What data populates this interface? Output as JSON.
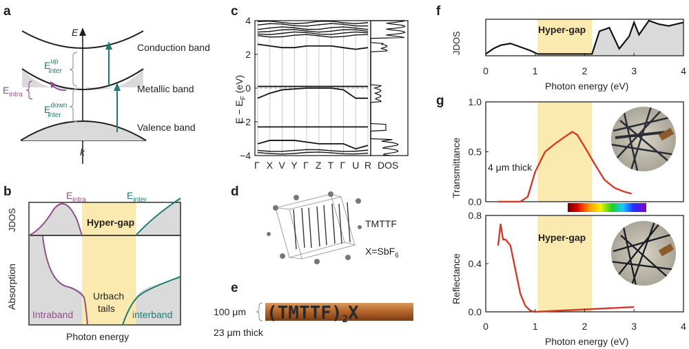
{
  "colors": {
    "purple": "#8e4e87",
    "teal": "#1f7a72",
    "red": "#d23a2a",
    "hypergap_fill": "#fbeab0",
    "grey_fill": "#dadada"
  },
  "panel_a": {
    "label": "a",
    "axis_e": "E",
    "axis_k": "k",
    "conduction": "Conduction band",
    "metallic": "Metallic band",
    "valence": "Valence band",
    "e_intra": {
      "base": "E",
      "sub": "intra"
    },
    "e_inter_up": {
      "base": "E",
      "sup": "up",
      "sub": "inter"
    },
    "e_inter_down": {
      "base": "E",
      "sup": "down",
      "sub": "inter"
    }
  },
  "panel_b": {
    "label": "b",
    "jdos": "JDOS",
    "absorption": "Absorption",
    "hypergap": "Hyper-gap",
    "e_intra": {
      "base": "E",
      "sub": "intra"
    },
    "e_inter": {
      "base": "E",
      "sub": "inter"
    },
    "intraband": "Intraband",
    "urbach_line1": "Urbach",
    "urbach_line2": "tails",
    "interband": "interband",
    "xlabel": "Photon energy"
  },
  "panel_c": {
    "label": "c",
    "ylabel": {
      "main": "E − E",
      "sub": "F",
      "unit": " (eV)"
    },
    "yticks": [
      "4",
      "2",
      "0",
      "−2",
      "−4"
    ],
    "kpoints": [
      "Γ",
      "X",
      "V",
      "Y",
      "Γ",
      "Z",
      "T",
      "Γ",
      "U",
      "R"
    ],
    "dos_label": "DOS",
    "ylim": [
      -4,
      4
    ]
  },
  "panel_d": {
    "label": "d",
    "molecule": "TMTTF",
    "anion": {
      "base": "X=SbF",
      "sub": "6"
    }
  },
  "panel_e": {
    "label": "e",
    "width_label": "100 μm",
    "crystal_text": "(TMTTF)",
    "crystal_sub": "2",
    "crystal_x": "X",
    "thickness": "23 μm thick"
  },
  "panel_f": {
    "label": "f",
    "ylabel": "JDOS",
    "hypergap": "Hyper-gap",
    "xlabel": "Photon energy (eV)",
    "xticks": [
      "0",
      "1",
      "2",
      "3",
      "4"
    ]
  },
  "panel_g": {
    "label": "g",
    "top_ylabel": "Transmittance",
    "top_yticks": [
      "1.0",
      "0.5",
      "0.0"
    ],
    "thickness": "4 μm thick",
    "bottom_ylabel": "Reflectance",
    "bottom_yticks": [
      "0.8",
      "0.4",
      "0.0"
    ],
    "hypergap": "Hyper-gap",
    "xlabel": "Photon energy (eV)",
    "xticks": [
      "0",
      "1",
      "2",
      "3",
      "4"
    ]
  },
  "chart_data": [
    {
      "type": "line",
      "panel": "c",
      "ylabel": "E − EF (eV)",
      "ylim": [
        -4,
        4
      ],
      "categories": [
        "Γ",
        "X",
        "V",
        "Y",
        "Γ",
        "Z",
        "T",
        "Γ",
        "U",
        "R"
      ],
      "series": [
        {
          "values": [
            0.1,
            0.1,
            0.1,
            0.1,
            0.1,
            0.1,
            0.1,
            0.1,
            0.1,
            0.1
          ]
        },
        {
          "values": [
            -0.6,
            -0.3,
            -0.1,
            -0.05,
            0.0,
            0.0,
            0.0,
            -0.1,
            -0.6,
            -0.6
          ]
        },
        {
          "values": [
            2.6,
            2.5,
            2.4,
            2.4,
            2.5,
            2.5,
            2.5,
            2.4,
            2.3,
            2.4
          ]
        },
        {
          "values": [
            -2.3,
            -2.3,
            -2.3,
            -2.3,
            -2.3,
            -2.3,
            -2.3,
            -2.3,
            -2.3,
            -2.3
          ]
        },
        {
          "values": [
            -3.3,
            -3.1,
            -3.1,
            -3.1,
            -3.2,
            -3.3,
            -3.3,
            -3.3,
            -3.6,
            -3.4
          ]
        }
      ]
    },
    {
      "type": "area",
      "panel": "f",
      "ylabel": "JDOS",
      "xlabel": "Photon energy (eV)",
      "xlim": [
        0,
        4
      ],
      "hypergap_range": [
        1.05,
        2.15
      ],
      "x": [
        0.0,
        0.15,
        0.3,
        0.5,
        0.7,
        0.9,
        1.05,
        2.15,
        2.3,
        2.5,
        2.7,
        2.9,
        3.0,
        3.1,
        3.3,
        3.5,
        3.7,
        4.0
      ],
      "y": [
        0.05,
        0.2,
        0.3,
        0.35,
        0.25,
        0.15,
        0.05,
        0.05,
        0.7,
        0.8,
        0.2,
        0.55,
        0.95,
        0.6,
        1.0,
        0.9,
        0.85,
        0.95
      ]
    },
    {
      "type": "line",
      "panel": "g-top",
      "ylabel": "Transmittance",
      "xlabel": "Photon energy (eV)",
      "xlim": [
        0,
        4
      ],
      "ylim": [
        0,
        1.0
      ],
      "x": [
        0.25,
        0.5,
        0.7,
        0.85,
        1.0,
        1.2,
        1.4,
        1.6,
        1.75,
        1.85,
        2.0,
        2.2,
        2.4,
        2.6,
        2.8,
        2.95
      ],
      "y": [
        0.0,
        0.0,
        0.0,
        0.05,
        0.3,
        0.5,
        0.58,
        0.65,
        0.7,
        0.67,
        0.55,
        0.38,
        0.22,
        0.14,
        0.1,
        0.08
      ]
    },
    {
      "type": "line",
      "panel": "g-bottom",
      "ylabel": "Reflectance",
      "xlabel": "Photon energy (eV)",
      "xlim": [
        0,
        4
      ],
      "ylim": [
        0,
        0.8
      ],
      "x": [
        0.25,
        0.3,
        0.35,
        0.4,
        0.5,
        0.6,
        0.7,
        0.8,
        0.9,
        1.0,
        1.5,
        2.0,
        2.5,
        3.0
      ],
      "y": [
        0.55,
        0.73,
        0.6,
        0.6,
        0.55,
        0.35,
        0.15,
        0.05,
        0.01,
        0.0,
        0.01,
        0.02,
        0.03,
        0.04
      ]
    }
  ]
}
